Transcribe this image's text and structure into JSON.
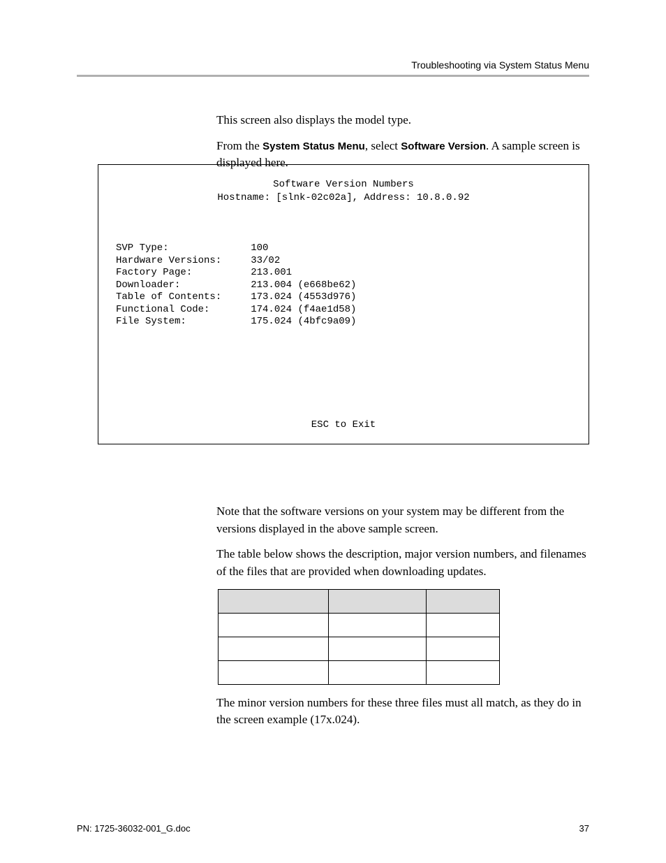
{
  "header": {
    "title": "Troubleshooting via System Status Menu"
  },
  "intro": {
    "line1": "This screen also displays the model type.",
    "line2_pre": "From the ",
    "line2_menu": "System Status Menu",
    "line2_mid": ", select ",
    "line2_item": "Software Version",
    "line2_post": ". A sample screen is displayed here."
  },
  "screen": {
    "title": "Software Version Numbers",
    "hostline": "Hostname: [slnk-02c02a], Address: 10.8.0.92",
    "rows": [
      "SVP Type:              100",
      "Hardware Versions:     33/02",
      "Factory Page:          213.001",
      "Downloader:            213.004 (e668be62)",
      "Table of Contents:     173.024 (4553d976)",
      "Functional Code:       174.024 (f4ae1d58)",
      "File System:           175.024 (4bfc9a09)"
    ],
    "footer": "ESC to Exit"
  },
  "below": {
    "para1": "Note that the software versions on your system may be different from the versions displayed in the above sample screen.",
    "para2": "The table below shows the description, major version numbers, and filenames of the files that are provided when downloading updates.",
    "para3": "The minor version numbers for these three files must all match, as they do in the screen example (17x.024)."
  },
  "table": {
    "headers": [
      "",
      "",
      ""
    ],
    "rows": [
      [
        "",
        "",
        ""
      ],
      [
        "",
        "",
        ""
      ],
      [
        "",
        "",
        ""
      ]
    ]
  },
  "footer": {
    "doc": "PN: 1725-36032-001_G.doc",
    "page": "37"
  }
}
